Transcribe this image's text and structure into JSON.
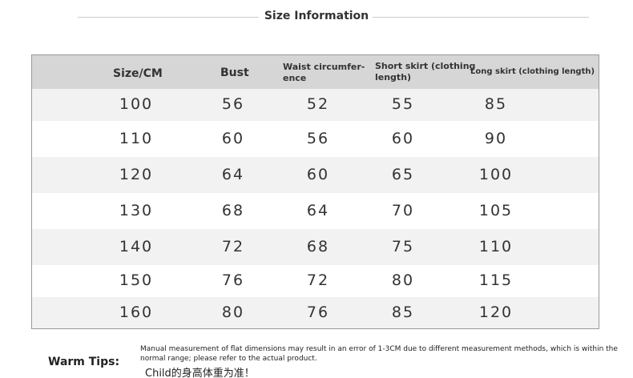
{
  "header": {
    "title": "Size Information"
  },
  "table": {
    "columns": [
      [
        "Size/CM"
      ],
      [
        "Bust"
      ],
      [
        "Waist circumfer-",
        "ence"
      ],
      [
        "Short skirt (clothing",
        "length)"
      ],
      [
        "Long skirt (clothing length)"
      ]
    ],
    "rows": [
      [
        100,
        56,
        52,
        55,
        85
      ],
      [
        110,
        60,
        56,
        60,
        90
      ],
      [
        120,
        64,
        60,
        65,
        100
      ],
      [
        130,
        68,
        64,
        70,
        105
      ],
      [
        140,
        72,
        68,
        75,
        110
      ],
      [
        150,
        76,
        72,
        80,
        115
      ],
      [
        160,
        80,
        76,
        85,
        120
      ]
    ]
  },
  "tips": {
    "label": "Warm Tips:",
    "note": [
      "Manual measurement of flat dimensions may result in an error of 1-3CM due to different measurement methods, which is within the",
      "normal range; please refer to the actual product."
    ],
    "child": "Child的身高体重为准！"
  }
}
